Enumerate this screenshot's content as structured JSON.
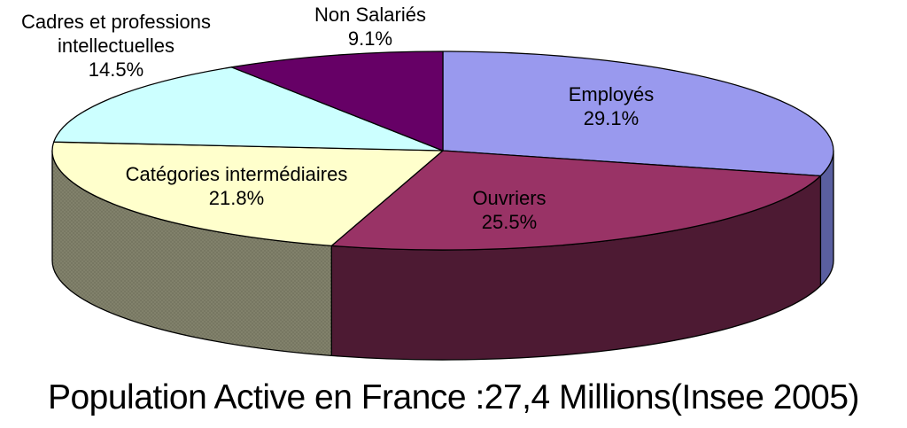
{
  "chart_data": {
    "type": "pie",
    "projection": "3d",
    "title": "Population Active en France :27,4 Millions(Insee 2005)",
    "unit": "%",
    "start_angle_deg": -90,
    "direction": "clockwise",
    "background": "#FFFFFF",
    "outline_color": "#000000",
    "slices": [
      {
        "id": "employes",
        "label": "Employés",
        "value": 29.1,
        "color": "#9999EE",
        "side_color": "#5A5FA0",
        "label_lines": [
          "Employés",
          "29.1%"
        ]
      },
      {
        "id": "ouvriers",
        "label": "Ouvriers",
        "value": 25.5,
        "color": "#993366",
        "side_color": "#4D1A33",
        "label_lines": [
          "Ouvriers",
          "25.5%"
        ]
      },
      {
        "id": "categories-intermediaires",
        "label": "Catégories intermédiaires",
        "value": 21.8,
        "color": "#FFFFCC",
        "side_color": "#81816B",
        "side_dot_color": "#5F5F4B",
        "texture": "stipple",
        "label_lines": [
          "Catégories intermédiaires",
          "21.8%"
        ]
      },
      {
        "id": "cadres",
        "label": "Cadres et professions intellectuelles",
        "value": 14.5,
        "color": "#CCFFFF",
        "side_color": "#6B8E8E",
        "label_lines": [
          "Cadres et professions",
          "intellectuelles",
          "14.5%"
        ]
      },
      {
        "id": "non-salaries",
        "label": "Non Salariés",
        "value": 9.1,
        "color": "#660066",
        "side_color": "#330033",
        "label_lines": [
          "Non Salariés",
          "9.1%"
        ]
      }
    ]
  }
}
